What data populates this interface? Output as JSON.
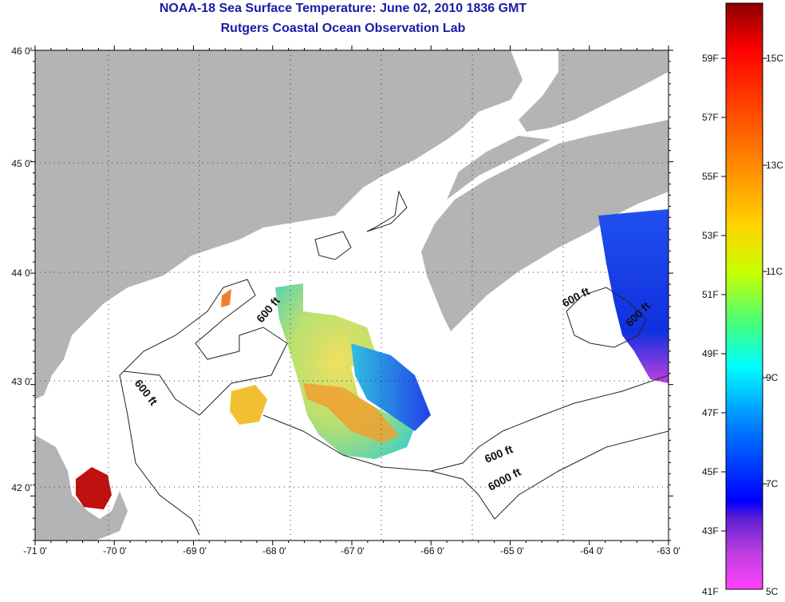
{
  "title": "NOAA-18 Sea Surface Temperature:  June 02, 2010 1836 GMT",
  "subtitle": "Rutgers Coastal Ocean Observation Lab",
  "map": {
    "lon_ticks": [
      "-71 0'",
      "-70 0'",
      "-69 0'",
      "-68 0'",
      "-67 0'",
      "-66 0'",
      "-65 0'",
      "-64 0'",
      "-63 0'"
    ],
    "lat_ticks": [
      "46 0'",
      "45 0'",
      "44 0'",
      "43 0'",
      "42 0'"
    ],
    "contour_labels": [
      "600 ft",
      "600 ft",
      "600 ft",
      "600 ft",
      "600 ft",
      "6000 ft"
    ],
    "colors": {
      "land": "#b4b4b4",
      "ocean": "#ffffff",
      "grid": "#333333"
    }
  },
  "colorbar": {
    "f_labels": [
      "59F",
      "57F",
      "55F",
      "53F",
      "51F",
      "49F",
      "47F",
      "45F",
      "43F",
      "41F"
    ],
    "c_labels": [
      "15C",
      "13C",
      "11C",
      "9C",
      "7C",
      "5C"
    ],
    "colors": [
      "#8b0000",
      "#ff0000",
      "#ff8c00",
      "#ffd400",
      "#c8ff00",
      "#40ff80",
      "#00ffff",
      "#0080ff",
      "#0000ff",
      "#6020d0",
      "#c040e0",
      "#ff40ff"
    ]
  }
}
